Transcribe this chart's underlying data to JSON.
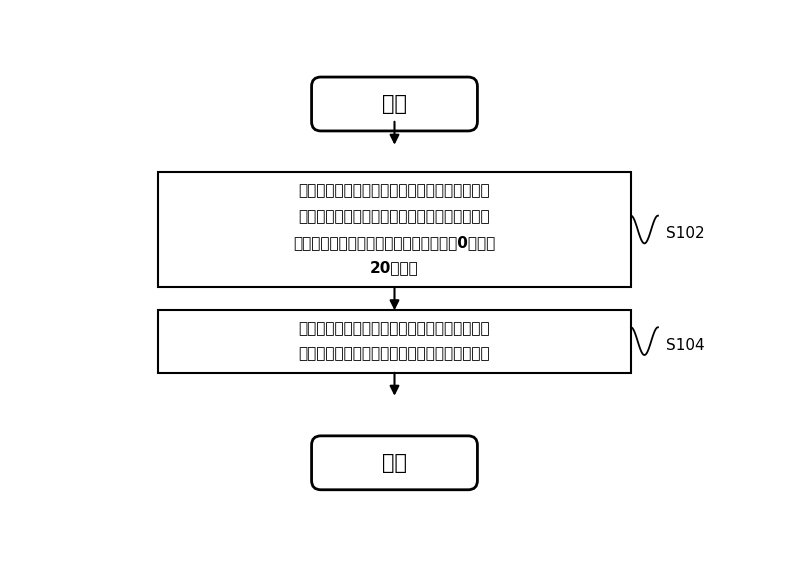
{
  "background_color": "#ffffff",
  "start_label": "开始",
  "end_label": "结束",
  "box1_text_lines": [
    "对于每个载频，分别确定与载频的中心频率对应",
    "的至少一个扫频点在预定方向上相对于中心频率",
    "的偏移值，其中，该偏移值为大于或等于0且小于",
    "20的整数"
  ],
  "box2_text_lines": [
    "发射端根据偏移值确定预定方向的反方向上的预",
    "定子载波，并在预定子载波上发送同步信号序列"
  ],
  "label1": "S102",
  "label2": "S104",
  "font_size_box": 11,
  "font_size_label": 11,
  "font_size_terminal": 15,
  "text_color": "#000000",
  "box_edge_color": "#000000",
  "arrow_color": "#000000",
  "box_fill": "#ffffff",
  "terminal_fill": "#ffffff",
  "fig_w": 8.0,
  "fig_h": 5.65,
  "dpi": 100
}
